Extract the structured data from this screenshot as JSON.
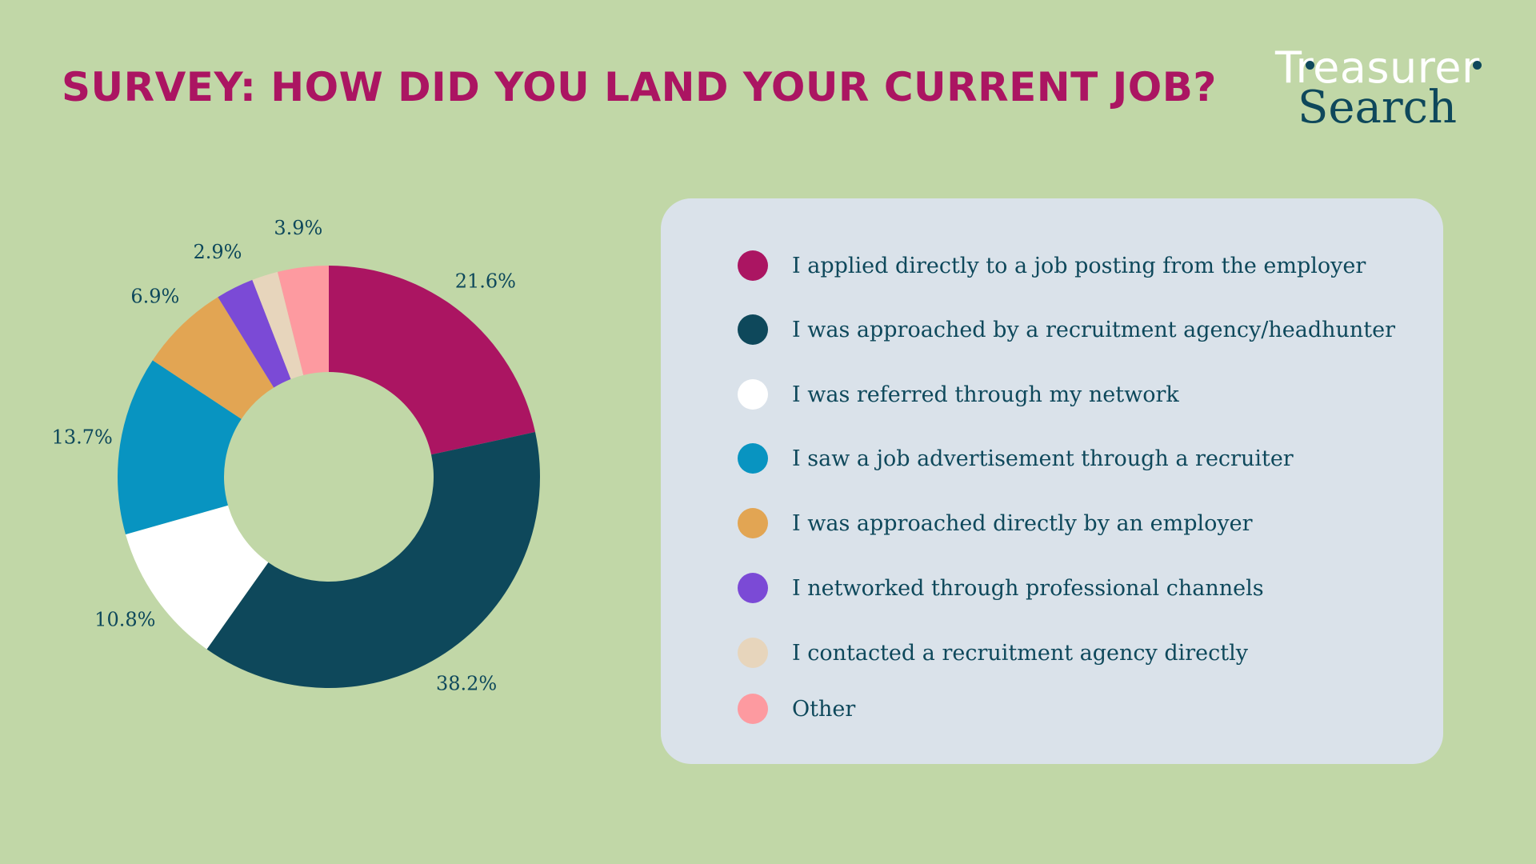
{
  "title": "SURVEY: HOW DID YOU LAND YOUR CURRENT JOB?",
  "logo": {
    "line1": "Treasurer",
    "line2": "Search",
    "text_color": "#ffffff",
    "accent_color": "#0e485b"
  },
  "colors": {
    "background": "#c1d7a7",
    "title": "#ab1562",
    "legend_panel": "#dae2ea",
    "text": "#0e485b"
  },
  "chart_data": {
    "type": "pie",
    "donut": true,
    "unit": "%",
    "start_angle_deg": 0,
    "direction": "clockwise",
    "slices": [
      {
        "label": "I applied directly to a job posting from the employer",
        "value": 21.6,
        "display": "21.6%",
        "color": "#ab1562"
      },
      {
        "label": "I was approached by a recruitment agency/headhunter",
        "value": 38.2,
        "display": "38.2%",
        "color": "#0e485b"
      },
      {
        "label": "I was referred through my network",
        "value": 10.8,
        "display": "10.8%",
        "color": "#ffffff"
      },
      {
        "label": "I saw a job advertisement through a recruiter",
        "value": 13.7,
        "display": "13.7%",
        "color": "#0894c1"
      },
      {
        "label": "I was approached directly by an employer",
        "value": 6.9,
        "display": "6.9%",
        "color": "#e2a553"
      },
      {
        "label": "I networked through professional channels",
        "value": 2.9,
        "display": "2.9%",
        "color": "#7b4ad6"
      },
      {
        "label": "I contacted a recruitment agency directly",
        "value": 2.0,
        "display": "",
        "color": "#e7d5bc"
      },
      {
        "label": "Other",
        "value": 3.9,
        "display": "3.9%",
        "color": "#fd9aa0"
      }
    ],
    "legend_placement": "right"
  }
}
